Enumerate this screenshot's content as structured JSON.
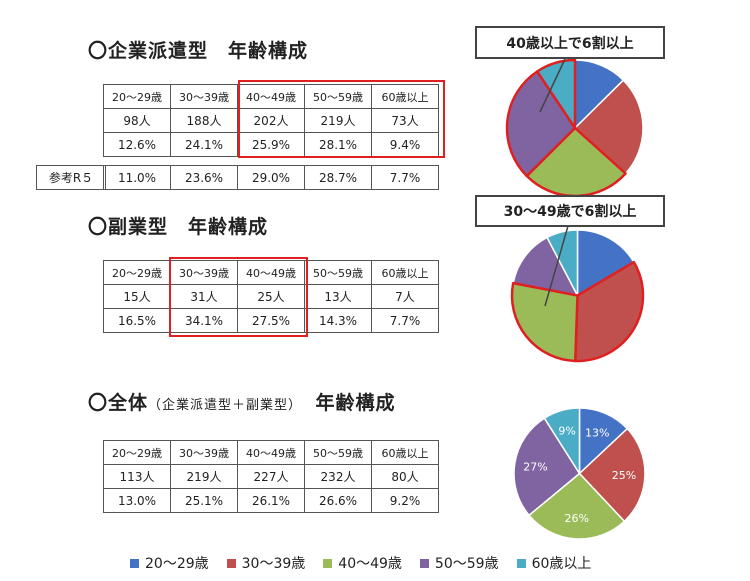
{
  "colors": {
    "c20s": "#4472c4",
    "c30s": "#c0504d",
    "c40s": "#9bbb59",
    "c50s": "#8064a2",
    "c60s": "#4bacc6",
    "highlight": "#e02020"
  },
  "sections": [
    {
      "title": "〇企業派遣型　年齢構成",
      "subtitle": "",
      "headers": [
        "20～29歳",
        "30～39歳",
        "40～49歳",
        "50～59歳",
        "60歳以上"
      ],
      "counts": [
        "98人",
        "188人",
        "202人",
        "219人",
        "73人"
      ],
      "percents": [
        "12.6%",
        "24.1%",
        "25.9%",
        "28.1%",
        "9.4%"
      ],
      "reference": {
        "label": "参考R５",
        "values": [
          "11.0%",
          "23.6%",
          "29.0%",
          "28.7%",
          "7.7%"
        ]
      },
      "callout": "40歳以上で6割以上"
    },
    {
      "title": "〇副業型　年齢構成",
      "subtitle": "",
      "headers": [
        "20～29歳",
        "30～39歳",
        "40～49歳",
        "50～59歳",
        "60歳以上"
      ],
      "counts": [
        "15人",
        "31人",
        "25人",
        "13人",
        "7人"
      ],
      "percents": [
        "16.5%",
        "34.1%",
        "27.5%",
        "14.3%",
        "7.7%"
      ],
      "callout": "30～49歳で6割以上"
    },
    {
      "title": "〇全体",
      "subtitle": "（企業派遣型＋副業型）",
      "title_suffix": "年齢構成",
      "headers": [
        "20～29歳",
        "30～39歳",
        "40～49歳",
        "50～59歳",
        "60歳以上"
      ],
      "counts": [
        "113人",
        "219人",
        "227人",
        "232人",
        "80人"
      ],
      "percents": [
        "13.0%",
        "25.1%",
        "26.1%",
        "26.6%",
        "9.2%"
      ]
    }
  ],
  "chart_data": [
    {
      "type": "pie",
      "categories": [
        "20～29歳",
        "30～39歳",
        "40～49歳",
        "50～59歳",
        "60歳以上"
      ],
      "values": [
        12.6,
        24.1,
        25.9,
        28.1,
        9.4
      ],
      "highlighted": [
        "40～49歳",
        "50～59歳",
        "60歳以上"
      ],
      "data_labels": []
    },
    {
      "type": "pie",
      "categories": [
        "20～29歳",
        "30～39歳",
        "40～49歳",
        "50～59歳",
        "60歳以上"
      ],
      "values": [
        16.5,
        34.1,
        27.5,
        14.3,
        7.7
      ],
      "highlighted": [
        "30～39歳",
        "40～49歳"
      ],
      "data_labels": []
    },
    {
      "type": "pie",
      "categories": [
        "20～29歳",
        "30～39歳",
        "40～49歳",
        "50～59歳",
        "60歳以上"
      ],
      "values": [
        13,
        25,
        26,
        27,
        9
      ],
      "highlighted": [],
      "data_labels": [
        "13%",
        "25%",
        "26%",
        "27%",
        "9%"
      ]
    }
  ],
  "legend": [
    "20～29歳",
    "30～39歳",
    "40～49歳",
    "50～59歳",
    "60歳以上"
  ]
}
